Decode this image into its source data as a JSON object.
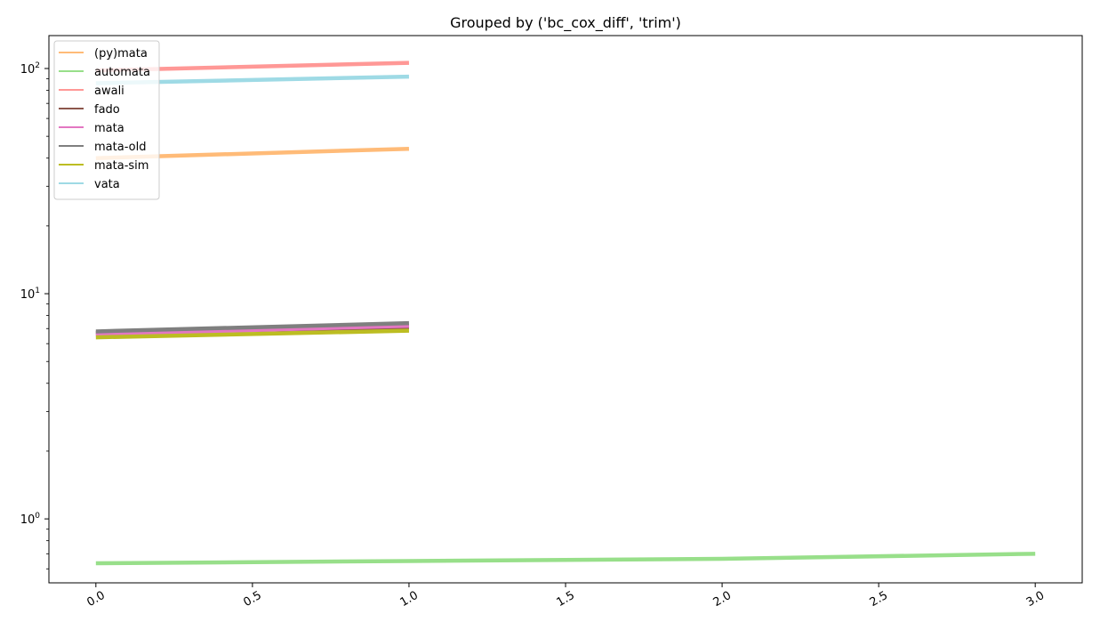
{
  "chart_data": {
    "type": "line",
    "title": "Grouped by ('bc_cox_diff', 'trim')",
    "xlabel": "",
    "ylabel": "",
    "x_ticks": [
      "0.0",
      "0.5",
      "1.0",
      "1.5",
      "2.0",
      "2.5",
      "3.0"
    ],
    "x_range": [
      -0.15,
      3.15
    ],
    "y_scale": "log",
    "y_range": [
      0.52,
      140
    ],
    "y_ticks": [
      {
        "value": 1,
        "base": "10",
        "exp": "0"
      },
      {
        "value": 10,
        "base": "10",
        "exp": "1"
      },
      {
        "value": 100,
        "base": "10",
        "exp": "2"
      }
    ],
    "grid": false,
    "legend_position": "upper-left",
    "series": [
      {
        "name": "(py)mata",
        "color": "#ffbb78",
        "x": [
          0,
          1
        ],
        "values": [
          40.0,
          44.0
        ]
      },
      {
        "name": "automata",
        "color": "#98df8a",
        "x": [
          0,
          1,
          2,
          3
        ],
        "values": [
          0.635,
          0.65,
          0.665,
          0.7
        ]
      },
      {
        "name": "awali",
        "color": "#ff9896",
        "x": [
          0,
          1
        ],
        "values": [
          98.0,
          106.0
        ]
      },
      {
        "name": "fado",
        "color": "#8c564b",
        "x": [
          0,
          1
        ],
        "values": [
          6.7,
          7.1
        ]
      },
      {
        "name": "mata",
        "color": "#e377c2",
        "x": [
          0,
          1
        ],
        "values": [
          6.6,
          7.2
        ]
      },
      {
        "name": "mata-old",
        "color": "#7f7f7f",
        "x": [
          0,
          1
        ],
        "values": [
          6.8,
          7.4
        ]
      },
      {
        "name": "mata-sim",
        "color": "#bcbd22",
        "x": [
          0,
          1
        ],
        "values": [
          6.4,
          6.85
        ]
      },
      {
        "name": "vata",
        "color": "#9edae5",
        "x": [
          0,
          1
        ],
        "values": [
          86.0,
          92.0
        ]
      }
    ]
  }
}
